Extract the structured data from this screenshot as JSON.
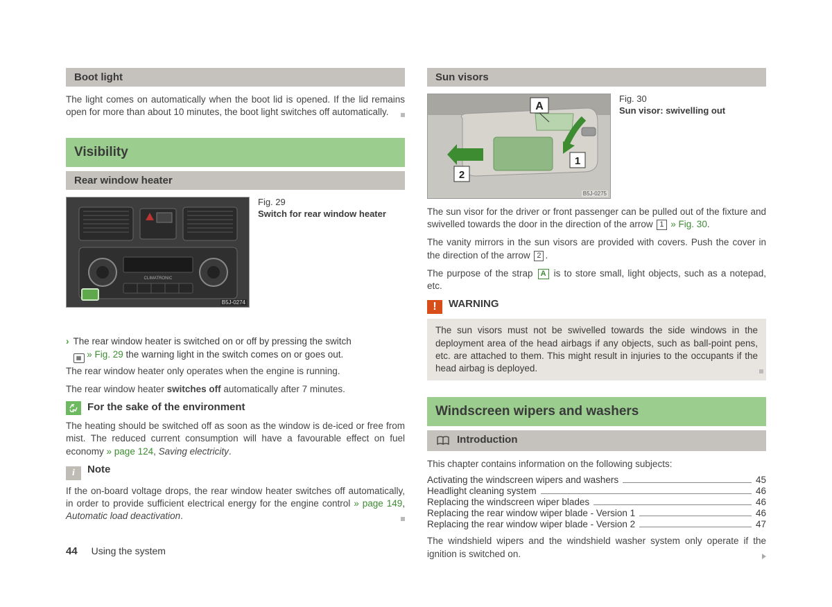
{
  "page": {
    "number": "44",
    "section": "Using the system"
  },
  "left": {
    "bootlight": {
      "title": "Boot light",
      "text": "The light comes on automatically when the boot lid is opened. If the lid remains open for more than about 10 minutes, the boot light switches off automatically."
    },
    "visibility": {
      "title": "Visibility"
    },
    "rearheater": {
      "title": "Rear window heater",
      "fig_num": "Fig. 29",
      "fig_title": "Switch for rear window heater",
      "illus_label": "B5J-0274",
      "bullet_a": "The rear window heater is switched on or off by pressing the switch",
      "bullet_b_pre": " ",
      "bullet_b_link": "» Fig. 29",
      "bullet_b_post": " the warning light in the switch comes on or goes out.",
      "p2": "The rear window heater only operates when the engine is running.",
      "p3a": "The rear window heater ",
      "p3b": "switches off",
      "p3c": " automatically after 7 minutes."
    },
    "env": {
      "title": "For the sake of the environment",
      "text_a": "The heating should be switched off as soon as the window is de-iced or free from mist. The reduced current consumption will have a favourable effect on fuel economy ",
      "link": "» page 124",
      "text_b": ", ",
      "ital": "Saving electricity",
      "text_c": "."
    },
    "note": {
      "title": "Note",
      "text_a": "If the on-board voltage drops, the rear window heater switches off automatically, in order to provide sufficient electrical energy for the engine control ",
      "link": "» page 149",
      "text_b": ", ",
      "ital": "Automatic load deactivation",
      "text_c": "."
    }
  },
  "right": {
    "sunvisors": {
      "title": "Sun visors",
      "fig_num": "Fig. 30",
      "fig_title": "Sun visor: swivelling out",
      "illus_label": "B5J-0275",
      "p1a": "The sun visor for the driver or front passenger can be pulled out of the fixture and swivelled towards the door in the direction of the arrow ",
      "ref1": "1",
      "p1link": " » Fig. 30",
      "p1b": ".",
      "p2a": "The vanity mirrors in the sun visors are provided with covers. Push the cover in the direction of the arrow ",
      "ref2": "2",
      "p2b": ".",
      "p3a": "The purpose of the strap ",
      "refA": "A",
      "p3b": " is to store small, light objects, such as a notepad, etc."
    },
    "warning": {
      "title": "WARNING",
      "text": "The sun visors must not be swivelled towards the side windows in the deployment area of the head airbags if any objects, such as ball-point pens, etc. are attached to them. This might result in injuries to the occupants if the head airbag is deployed."
    },
    "wipers": {
      "title": "Windscreen wipers and washers",
      "intro_title": "Introduction",
      "lead": "This chapter contains information on the following subjects:",
      "toc": [
        {
          "t": "Activating the windscreen wipers and washers",
          "p": "45"
        },
        {
          "t": "Headlight cleaning system",
          "p": "46"
        },
        {
          "t": "Replacing the windscreen wiper blades",
          "p": "46"
        },
        {
          "t": "Replacing the rear window wiper blade - Version 1",
          "p": "46"
        },
        {
          "t": "Replacing the rear window wiper blade - Version 2",
          "p": "47"
        }
      ],
      "tail": "The windshield wipers and the windshield washer system only operate if the ignition is switched on."
    }
  },
  "colors": {
    "green_header": "#9acd8e",
    "grey_header": "#c5c2bd",
    "link": "#3d8c32",
    "warn": "#d84e1a",
    "warn_bg": "#e8e5e0"
  }
}
